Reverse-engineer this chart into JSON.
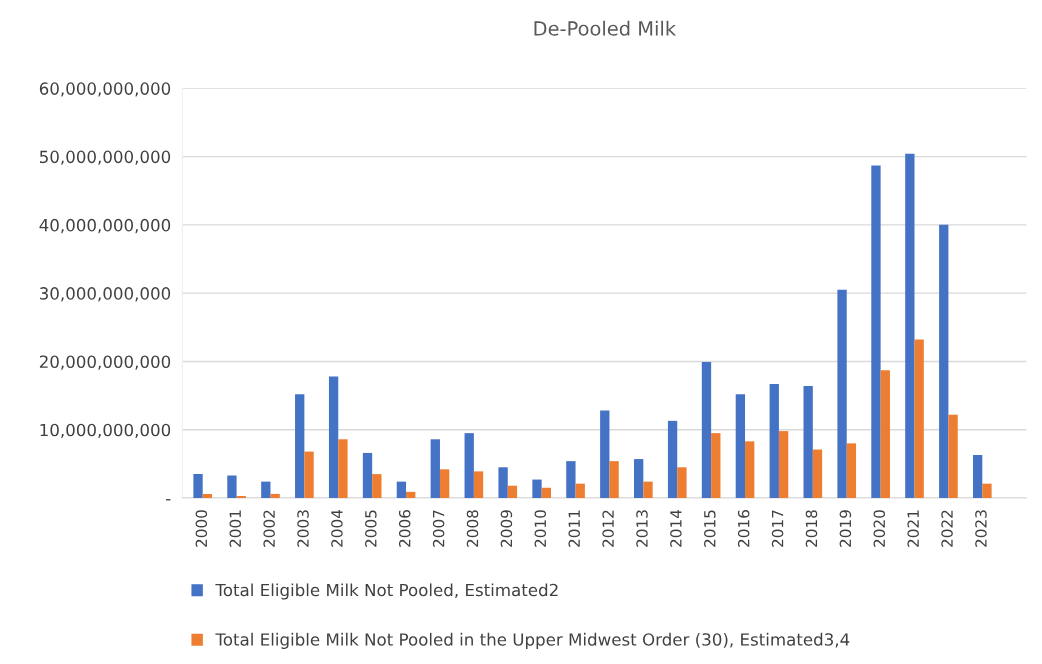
{
  "chart_data": {
    "type": "bar",
    "title": "De-Pooled Milk",
    "categories": [
      "2000",
      "2001",
      "2002",
      "2003",
      "2004",
      "2005",
      "2006",
      "2007",
      "2008",
      "2009",
      "2010",
      "2011",
      "2012",
      "2013",
      "2014",
      "2015",
      "2016",
      "2017",
      "2018",
      "2019",
      "2020",
      "2021",
      "2022",
      "2023"
    ],
    "series": [
      {
        "name": "Total Eligible Milk Not Pooled, Estimated2",
        "color": "#4472c4",
        "values": [
          3500000000,
          3300000000,
          2400000000,
          15200000000,
          17800000000,
          6600000000,
          2400000000,
          8600000000,
          9500000000,
          4500000000,
          2700000000,
          5400000000,
          12800000000,
          5700000000,
          11300000000,
          19900000000,
          15200000000,
          16700000000,
          16400000000,
          30500000000,
          48700000000,
          50400000000,
          40000000000,
          6300000000
        ]
      },
      {
        "name": "Total Eligible Milk Not Pooled in the Upper Midwest Order (30), Estimated3,4",
        "color": "#ed7d31",
        "values": [
          600000000,
          300000000,
          600000000,
          6800000000,
          8600000000,
          3500000000,
          900000000,
          4200000000,
          3900000000,
          1800000000,
          1500000000,
          2100000000,
          5400000000,
          2400000000,
          4500000000,
          9500000000,
          8300000000,
          9800000000,
          7100000000,
          8000000000,
          18700000000,
          23200000000,
          12200000000,
          2100000000
        ]
      }
    ],
    "ylim": [
      0,
      60000000000
    ],
    "yticks": [
      {
        "value": 0,
        "label": "-"
      },
      {
        "value": 10000000000,
        "label": "10,000,000,000"
      },
      {
        "value": 20000000000,
        "label": "20,000,000,000"
      },
      {
        "value": 30000000000,
        "label": "30,000,000,000"
      },
      {
        "value": 40000000000,
        "label": "40,000,000,000"
      },
      {
        "value": 50000000000,
        "label": "50,000,000,000"
      },
      {
        "value": 60000000000,
        "label": "60,000,000,000"
      }
    ],
    "grid": "y",
    "legend": "bottom"
  }
}
